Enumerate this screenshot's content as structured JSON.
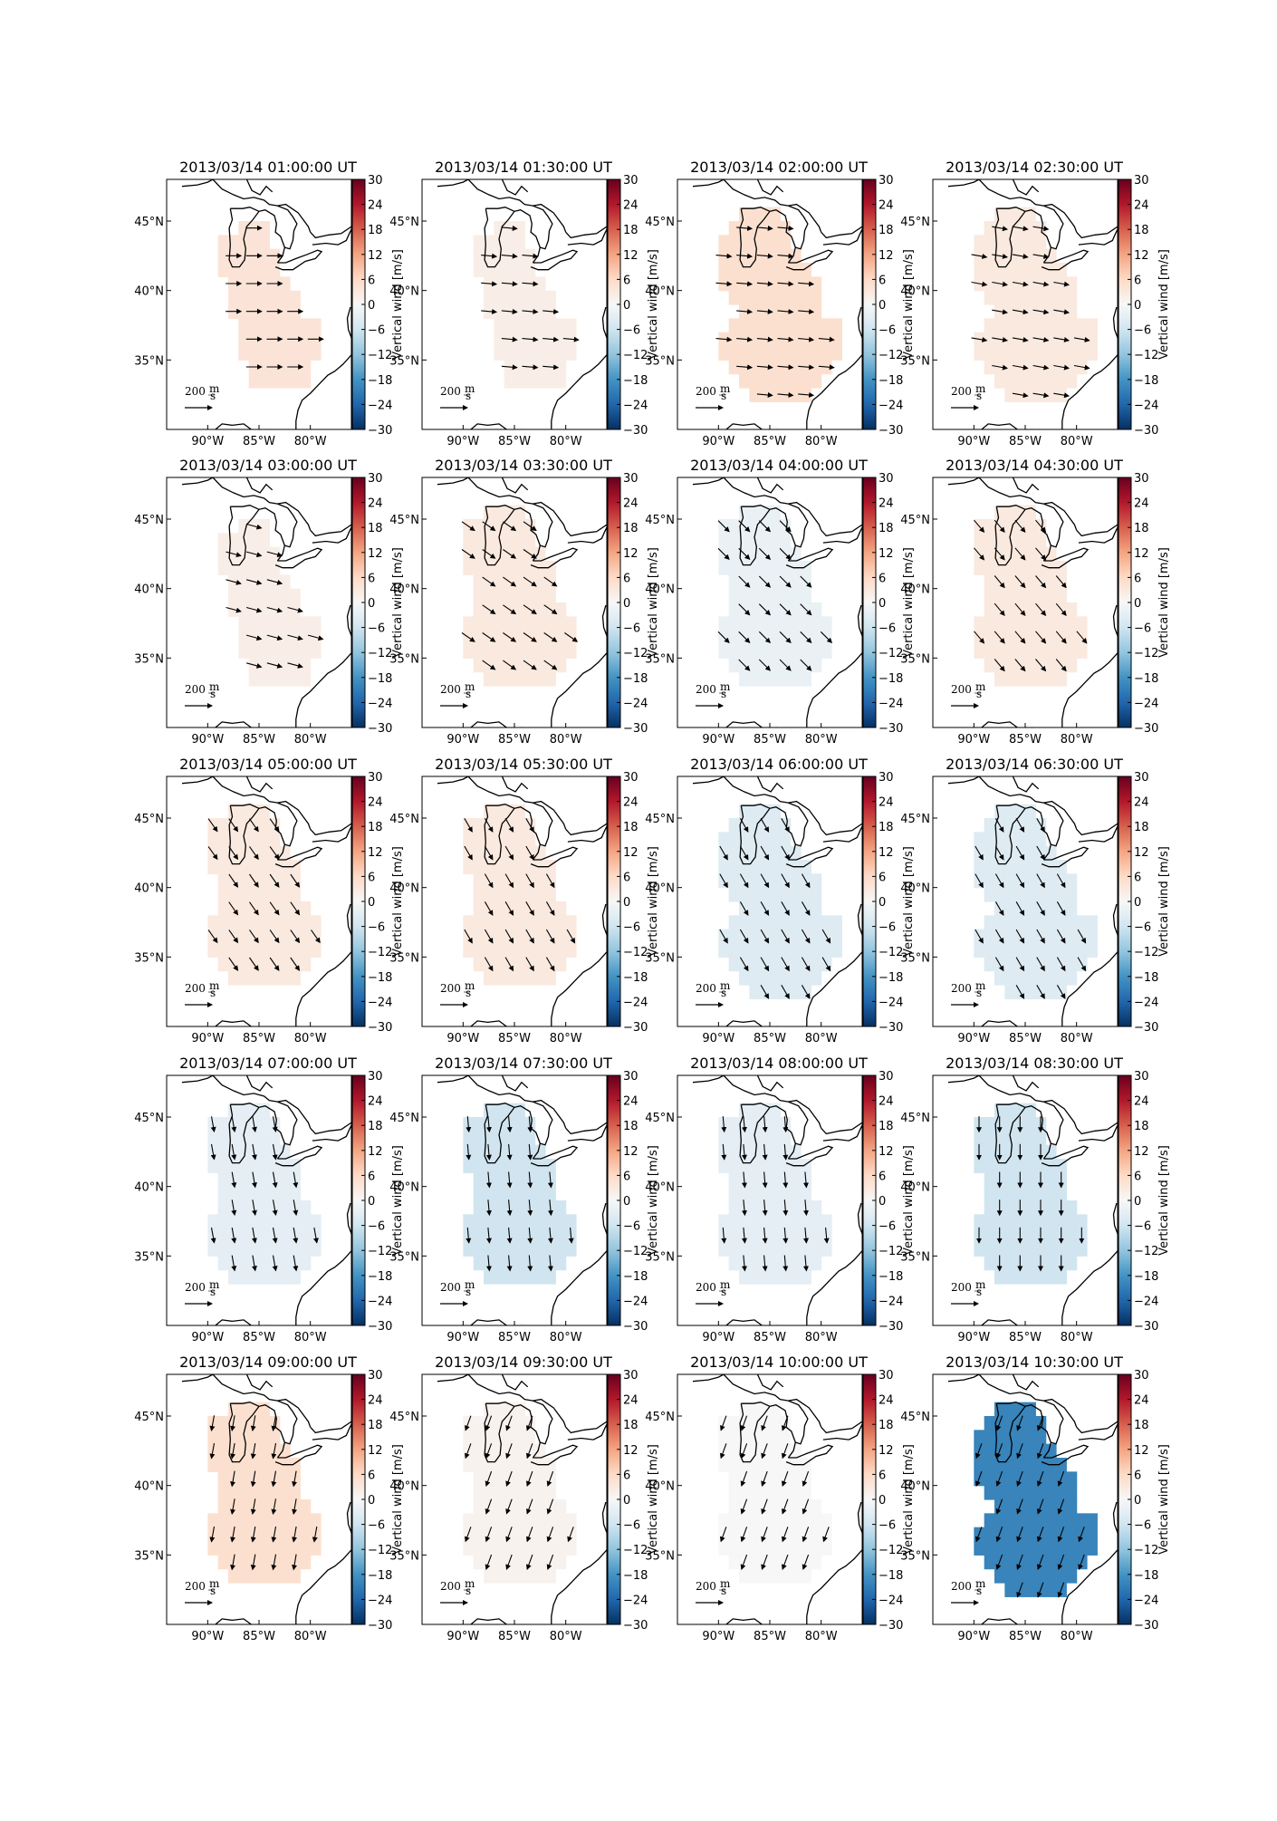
{
  "chart_data": {
    "type": "heatmap",
    "layout": {
      "rows": 5,
      "cols": 4
    },
    "colorbar": {
      "label": "Vertical wind [m/s]",
      "range": [
        -30,
        30
      ],
      "ticks": [
        "30",
        "24",
        "18",
        "12",
        "6",
        "0",
        "−6",
        "−12",
        "−18",
        "−24",
        "−30"
      ],
      "colormap": "RdBu_r"
    },
    "map": {
      "lon_range": [
        -94,
        -76
      ],
      "lat_range": [
        30,
        48
      ],
      "lon_ticks": [
        {
          "value": -90,
          "label": "90°W"
        },
        {
          "value": -85,
          "label": "85°W"
        },
        {
          "value": -80,
          "label": "80°W"
        }
      ],
      "lat_ticks": [
        {
          "value": 45,
          "label": "45°N"
        },
        {
          "value": 40,
          "label": "40°N"
        },
        {
          "value": 35,
          "label": "35°N"
        }
      ]
    },
    "scale_arrow": {
      "value": 200,
      "label": "200 m/s"
    },
    "panels": [
      {
        "title": "2013/03/14 01:00:00 UT",
        "vertical_wind": 4,
        "region": "north",
        "arrow_dir": 0
      },
      {
        "title": "2013/03/14 01:30:00 UT",
        "vertical_wind": 2,
        "region": "north",
        "arrow_dir": 5
      },
      {
        "title": "2013/03/14 02:00:00 UT",
        "vertical_wind": 5,
        "region": "full",
        "arrow_dir": 5
      },
      {
        "title": "2013/03/14 02:30:00 UT",
        "vertical_wind": 3,
        "region": "full",
        "arrow_dir": 10
      },
      {
        "title": "2013/03/14 03:00:00 UT",
        "vertical_wind": 2,
        "region": "north",
        "arrow_dir": 15
      },
      {
        "title": "2013/03/14 03:30:00 UT",
        "vertical_wind": 3,
        "region": "mid",
        "arrow_dir": 35
      },
      {
        "title": "2013/03/14 04:00:00 UT",
        "vertical_wind": -2,
        "region": "mid",
        "arrow_dir": 45
      },
      {
        "title": "2013/03/14 04:30:00 UT",
        "vertical_wind": 3,
        "region": "mid",
        "arrow_dir": 50
      },
      {
        "title": "2013/03/14 05:00:00 UT",
        "vertical_wind": 3,
        "region": "mid",
        "arrow_dir": 55
      },
      {
        "title": "2013/03/14 05:30:00 UT",
        "vertical_wind": 3,
        "region": "mid",
        "arrow_dir": 60
      },
      {
        "title": "2013/03/14 06:00:00 UT",
        "vertical_wind": -4,
        "region": "full",
        "arrow_dir": 60
      },
      {
        "title": "2013/03/14 06:30:00 UT",
        "vertical_wind": -4,
        "region": "full",
        "arrow_dir": 60
      },
      {
        "title": "2013/03/14 07:00:00 UT",
        "vertical_wind": -3,
        "region": "mid",
        "arrow_dir": 80
      },
      {
        "title": "2013/03/14 07:30:00 UT",
        "vertical_wind": -6,
        "region": "mid",
        "arrow_dir": 85
      },
      {
        "title": "2013/03/14 08:00:00 UT",
        "vertical_wind": -3,
        "region": "mid",
        "arrow_dir": 85
      },
      {
        "title": "2013/03/14 08:30:00 UT",
        "vertical_wind": -6,
        "region": "mid",
        "arrow_dir": 90
      },
      {
        "title": "2013/03/14 09:00:00 UT",
        "vertical_wind": 5,
        "region": "mid",
        "arrow_dir": 100
      },
      {
        "title": "2013/03/14 09:30:00 UT",
        "vertical_wind": 1,
        "region": "mid",
        "arrow_dir": 110
      },
      {
        "title": "2013/03/14 10:00:00 UT",
        "vertical_wind": 0,
        "region": "mid",
        "arrow_dir": 110
      },
      {
        "title": "2013/03/14 10:30:00 UT",
        "vertical_wind": -20,
        "region": "full",
        "arrow_dir": 110
      }
    ]
  }
}
